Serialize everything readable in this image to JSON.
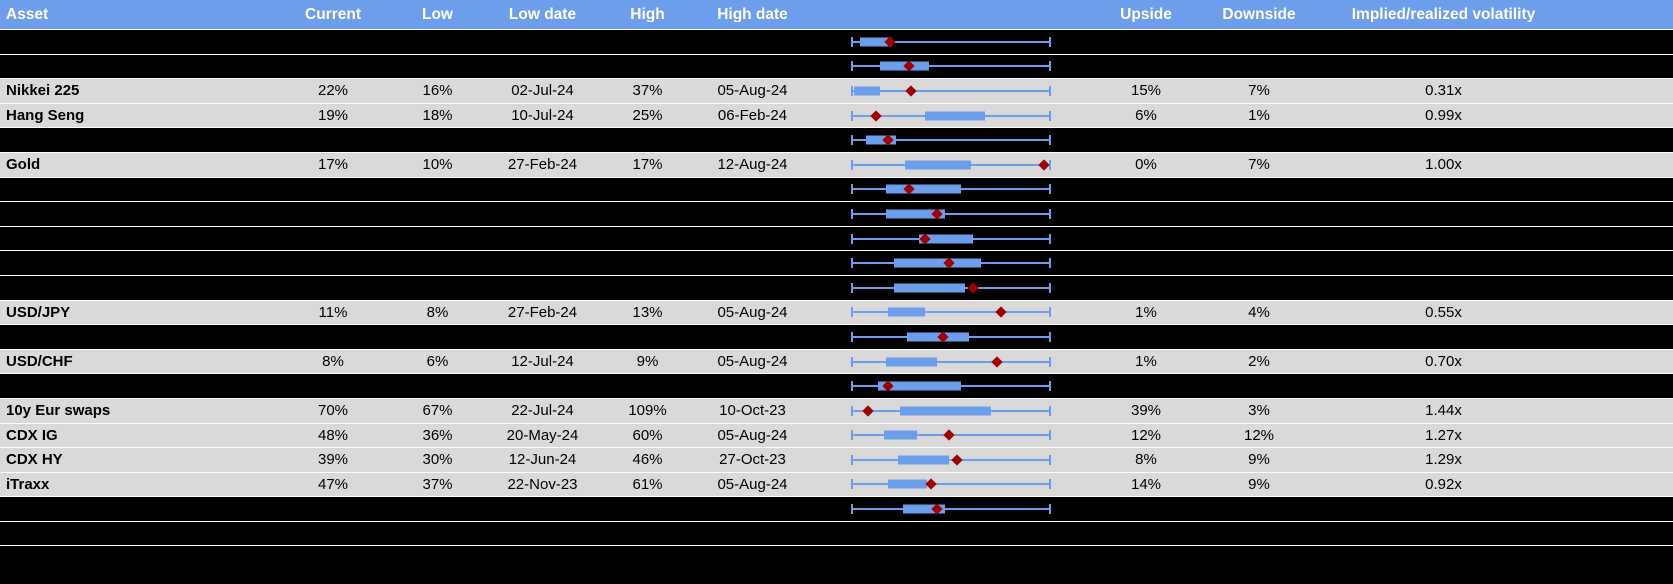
{
  "header": {
    "asset": "Asset",
    "current": "Current",
    "low": "Low",
    "low_date": "Low date",
    "high": "High",
    "high_date": "High date",
    "upside": "Upside",
    "downside": "Downside",
    "vol": "Implied/realized volatility"
  },
  "colors": {
    "header_bg": "#6d9eeb",
    "row_light": "#d9d9d9",
    "row_dark": "#000000",
    "box": "#6d9eeb",
    "whisker": "#6d9eeb",
    "diamond": "#a00000"
  },
  "rows": [
    {
      "type": "dark",
      "boxplot": {
        "w_lo": 0,
        "w_hi": 100,
        "b_lo": 4,
        "b_hi": 20,
        "d": 19
      }
    },
    {
      "type": "dark",
      "boxplot": {
        "w_lo": 0,
        "w_hi": 100,
        "b_lo": 14,
        "b_hi": 39,
        "d": 29
      }
    },
    {
      "type": "light",
      "asset": "Nikkei 225",
      "current": "22%",
      "low": "16%",
      "low_date": "02-Jul-24",
      "high": "37%",
      "high_date": "05-Aug-24",
      "upside": "15%",
      "downside": "7%",
      "vol": "0.31x",
      "boxplot": {
        "w_lo": 0,
        "w_hi": 100,
        "b_lo": 1,
        "b_hi": 14,
        "d": 30
      }
    },
    {
      "type": "light",
      "asset": "Hang Seng",
      "current": "19%",
      "low": "18%",
      "low_date": "10-Jul-24",
      "high": "25%",
      "high_date": "06-Feb-24",
      "upside": "6%",
      "downside": "1%",
      "vol": "0.99x",
      "boxplot": {
        "w_lo": 0,
        "w_hi": 100,
        "b_lo": 37,
        "b_hi": 67,
        "d": 12
      }
    },
    {
      "type": "dark",
      "boxplot": {
        "w_lo": 0,
        "w_hi": 100,
        "b_lo": 7,
        "b_hi": 22,
        "d": 18
      }
    },
    {
      "type": "light",
      "asset": "Gold",
      "current": "17%",
      "low": "10%",
      "low_date": "27-Feb-24",
      "high": "17%",
      "high_date": "12-Aug-24",
      "upside": "0%",
      "downside": "7%",
      "vol": "1.00x",
      "boxplot": {
        "w_lo": 0,
        "w_hi": 100,
        "b_lo": 27,
        "b_hi": 60,
        "d": 97
      }
    },
    {
      "type": "dark",
      "boxplot": {
        "w_lo": 0,
        "w_hi": 100,
        "b_lo": 17,
        "b_hi": 55,
        "d": 29
      }
    },
    {
      "type": "dark",
      "boxplot": {
        "w_lo": 0,
        "w_hi": 100,
        "b_lo": 17,
        "b_hi": 47,
        "d": 43
      }
    },
    {
      "type": "dark",
      "boxplot": {
        "w_lo": 0,
        "w_hi": 100,
        "b_lo": 34,
        "b_hi": 61,
        "d": 37
      }
    },
    {
      "type": "dark",
      "boxplot": {
        "w_lo": 0,
        "w_hi": 100,
        "b_lo": 21,
        "b_hi": 65,
        "d": 49
      }
    },
    {
      "type": "dark",
      "boxplot": {
        "w_lo": 0,
        "w_hi": 100,
        "b_lo": 21,
        "b_hi": 57,
        "d": 61
      }
    },
    {
      "type": "light",
      "asset": "USD/JPY",
      "current": "11%",
      "low": "8%",
      "low_date": "27-Feb-24",
      "high": "13%",
      "high_date": "05-Aug-24",
      "upside": "1%",
      "downside": "4%",
      "vol": "0.55x",
      "boxplot": {
        "w_lo": 0,
        "w_hi": 100,
        "b_lo": 18,
        "b_hi": 37,
        "d": 75
      }
    },
    {
      "type": "dark",
      "boxplot": {
        "w_lo": 0,
        "w_hi": 100,
        "b_lo": 28,
        "b_hi": 59,
        "d": 46
      }
    },
    {
      "type": "light",
      "asset": "USD/CHF",
      "current": "8%",
      "low": "6%",
      "low_date": "12-Jul-24",
      "high": "9%",
      "high_date": "05-Aug-24",
      "upside": "1%",
      "downside": "2%",
      "vol": "0.70x",
      "boxplot": {
        "w_lo": 0,
        "w_hi": 100,
        "b_lo": 17,
        "b_hi": 43,
        "d": 73
      }
    },
    {
      "type": "dark",
      "boxplot": {
        "w_lo": 0,
        "w_hi": 100,
        "b_lo": 13,
        "b_hi": 55,
        "d": 18
      }
    },
    {
      "type": "light",
      "asset": "10y Eur swaps",
      "current": "70%",
      "low": "67%",
      "low_date": "22-Jul-24",
      "high": "109%",
      "high_date": "10-Oct-23",
      "upside": "39%",
      "downside": "3%",
      "vol": "1.44x",
      "boxplot": {
        "w_lo": 0,
        "w_hi": 100,
        "b_lo": 24,
        "b_hi": 70,
        "d": 8
      }
    },
    {
      "type": "light",
      "asset": "CDX IG",
      "current": "48%",
      "low": "36%",
      "low_date": "20-May-24",
      "high": "60%",
      "high_date": "05-Aug-24",
      "upside": "12%",
      "downside": "12%",
      "vol": "1.27x",
      "boxplot": {
        "w_lo": 0,
        "w_hi": 100,
        "b_lo": 16,
        "b_hi": 33,
        "d": 49
      }
    },
    {
      "type": "light",
      "asset": "CDX HY",
      "current": "39%",
      "low": "30%",
      "low_date": "12-Jun-24",
      "high": "46%",
      "high_date": "27-Oct-23",
      "upside": "8%",
      "downside": "9%",
      "vol": "1.29x",
      "boxplot": {
        "w_lo": 0,
        "w_hi": 100,
        "b_lo": 23,
        "b_hi": 49,
        "d": 53
      }
    },
    {
      "type": "light",
      "asset": "iTraxx",
      "current": "47%",
      "low": "37%",
      "low_date": "22-Nov-23",
      "high": "61%",
      "high_date": "05-Aug-24",
      "upside": "14%",
      "downside": "9%",
      "vol": "0.92x",
      "boxplot": {
        "w_lo": 0,
        "w_hi": 100,
        "b_lo": 18,
        "b_hi": 38,
        "d": 40
      }
    },
    {
      "type": "dark",
      "boxplot": {
        "w_lo": 0,
        "w_hi": 100,
        "b_lo": 26,
        "b_hi": 47,
        "d": 43
      }
    },
    {
      "type": "dark",
      "boxplot": null
    }
  ],
  "chart_data": {
    "type": "table",
    "columns": [
      "Asset",
      "Current",
      "Low",
      "Low date",
      "High",
      "High date",
      "Upside",
      "Downside",
      "Implied/realized volatility"
    ],
    "rows": [
      [
        "Nikkei 225",
        "22%",
        "16%",
        "02-Jul-24",
        "37%",
        "05-Aug-24",
        "15%",
        "7%",
        "0.31x"
      ],
      [
        "Hang Seng",
        "19%",
        "18%",
        "10-Jul-24",
        "25%",
        "06-Feb-24",
        "6%",
        "1%",
        "0.99x"
      ],
      [
        "Gold",
        "17%",
        "10%",
        "27-Feb-24",
        "17%",
        "12-Aug-24",
        "0%",
        "7%",
        "1.00x"
      ],
      [
        "USD/JPY",
        "11%",
        "8%",
        "27-Feb-24",
        "13%",
        "05-Aug-24",
        "1%",
        "4%",
        "0.55x"
      ],
      [
        "USD/CHF",
        "8%",
        "6%",
        "12-Jul-24",
        "9%",
        "05-Aug-24",
        "1%",
        "2%",
        "0.70x"
      ],
      [
        "10y Eur swaps",
        "70%",
        "67%",
        "22-Jul-24",
        "109%",
        "10-Oct-23",
        "39%",
        "3%",
        "1.44x"
      ],
      [
        "CDX IG",
        "48%",
        "36%",
        "20-May-24",
        "60%",
        "05-Aug-24",
        "12%",
        "12%",
        "1.27x"
      ],
      [
        "CDX HY",
        "39%",
        "30%",
        "12-Jun-24",
        "46%",
        "27-Oct-23",
        "8%",
        "9%",
        "1.29x"
      ],
      [
        "iTraxx",
        "47%",
        "37%",
        "22-Nov-23",
        "61%",
        "05-Aug-24",
        "14%",
        "9%",
        "0.92x"
      ]
    ]
  }
}
